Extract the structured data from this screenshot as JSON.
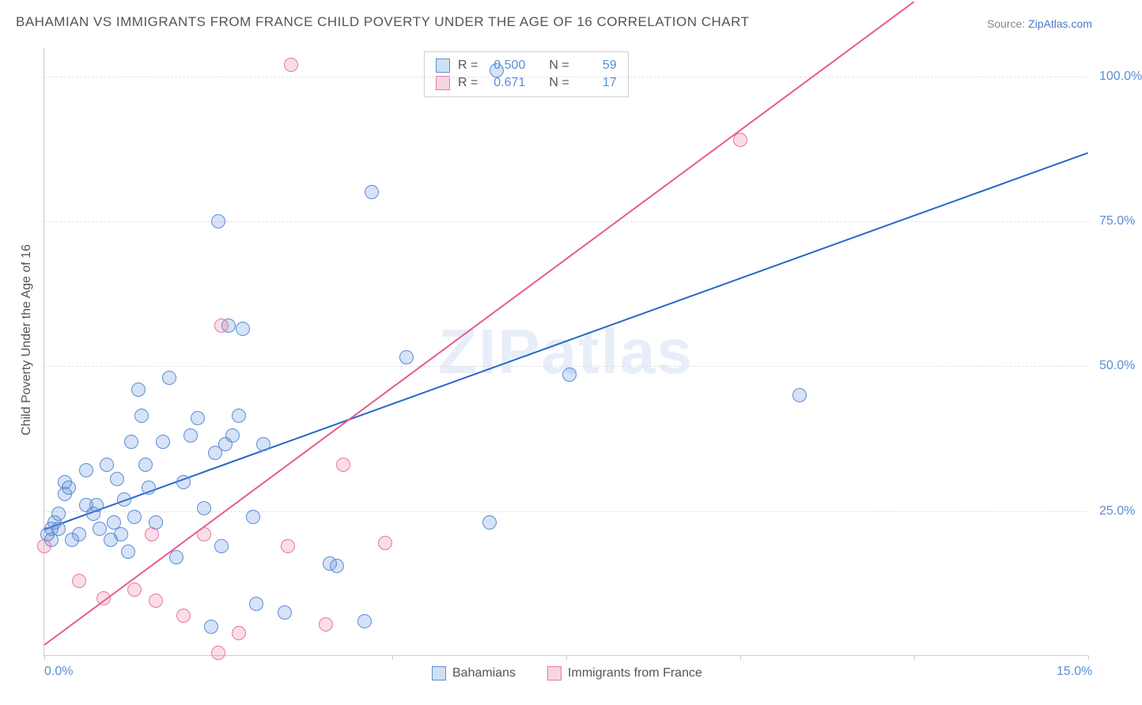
{
  "title": "BAHAMIAN VS IMMIGRANTS FROM FRANCE CHILD POVERTY UNDER THE AGE OF 16 CORRELATION CHART",
  "source_prefix": "Source: ",
  "source_link": "ZipAtlas.com",
  "y_axis_title": "Child Poverty Under the Age of 16",
  "watermark": "ZIPatlas",
  "chart": {
    "type": "scatter",
    "background_color": "#ffffff",
    "grid_color": "#e0e0e0",
    "x_range": [
      0,
      15
    ],
    "y_range": [
      0,
      105
    ],
    "x_ticks": [
      0,
      5,
      7.5,
      10,
      12.5,
      15
    ],
    "x_labels_shown": [
      {
        "v": 0,
        "t": "0.0%"
      },
      {
        "v": 15,
        "t": "15.0%"
      }
    ],
    "y_ticks": [
      25,
      50,
      75,
      100
    ],
    "y_tick_format": "%",
    "series": [
      {
        "name": "Bahamians",
        "color_fill": "rgba(91,141,214,0.25)",
        "color_stroke": "#5b8dd6",
        "swatch_fill": "#cfe0f5",
        "point_radius": 9,
        "R": "0.500",
        "N": "59",
        "trend": {
          "x1": 0,
          "y1": 22,
          "x2": 15,
          "y2": 87,
          "color": "#2968c8",
          "width": 2
        },
        "points": [
          [
            0.05,
            21
          ],
          [
            0.1,
            22
          ],
          [
            0.1,
            20
          ],
          [
            0.15,
            23
          ],
          [
            0.2,
            22
          ],
          [
            0.2,
            24.5
          ],
          [
            0.3,
            28
          ],
          [
            0.3,
            30
          ],
          [
            0.35,
            29
          ],
          [
            0.4,
            20
          ],
          [
            0.5,
            21
          ],
          [
            0.6,
            32
          ],
          [
            0.6,
            26
          ],
          [
            0.7,
            24.5
          ],
          [
            0.75,
            26
          ],
          [
            0.8,
            22
          ],
          [
            0.9,
            33
          ],
          [
            0.95,
            20
          ],
          [
            1.0,
            23
          ],
          [
            1.05,
            30.5
          ],
          [
            1.1,
            21
          ],
          [
            1.15,
            27
          ],
          [
            1.2,
            18
          ],
          [
            1.25,
            37
          ],
          [
            1.3,
            24
          ],
          [
            1.35,
            46
          ],
          [
            1.4,
            41.5
          ],
          [
            1.45,
            33
          ],
          [
            1.5,
            29
          ],
          [
            1.6,
            23
          ],
          [
            1.7,
            37
          ],
          [
            1.8,
            48
          ],
          [
            1.9,
            17
          ],
          [
            2.0,
            30
          ],
          [
            2.1,
            38
          ],
          [
            2.2,
            41
          ],
          [
            2.3,
            25.5
          ],
          [
            2.4,
            5
          ],
          [
            2.45,
            35
          ],
          [
            2.5,
            75
          ],
          [
            2.55,
            19
          ],
          [
            2.6,
            36.5
          ],
          [
            2.65,
            57
          ],
          [
            2.7,
            38
          ],
          [
            2.8,
            41.5
          ],
          [
            2.85,
            56.5
          ],
          [
            3.0,
            24
          ],
          [
            3.05,
            9
          ],
          [
            3.15,
            36.5
          ],
          [
            3.45,
            7.5
          ],
          [
            4.1,
            16
          ],
          [
            4.2,
            15.5
          ],
          [
            4.6,
            6
          ],
          [
            4.7,
            80
          ],
          [
            5.2,
            51.5
          ],
          [
            6.5,
            101
          ],
          [
            7.55,
            48.5
          ],
          [
            10.85,
            45
          ],
          [
            6.4,
            23
          ]
        ]
      },
      {
        "name": "Immigrants from France",
        "color_fill": "rgba(232,120,160,0.25)",
        "color_stroke": "#e878a0",
        "swatch_fill": "#f7d5e2",
        "point_radius": 9,
        "R": "0.671",
        "N": "17",
        "trend": {
          "x1": 0,
          "y1": 2,
          "x2": 12.5,
          "y2": 113,
          "color": "#e65a8f",
          "width": 2
        },
        "points": [
          [
            0.0,
            19
          ],
          [
            0.5,
            13
          ],
          [
            0.85,
            10
          ],
          [
            1.3,
            11.5
          ],
          [
            1.55,
            21
          ],
          [
            1.6,
            9.5
          ],
          [
            2.0,
            7
          ],
          [
            2.3,
            21
          ],
          [
            2.5,
            0.5
          ],
          [
            2.55,
            57
          ],
          [
            2.8,
            4
          ],
          [
            3.5,
            19
          ],
          [
            3.55,
            102
          ],
          [
            4.05,
            5.5
          ],
          [
            4.3,
            33
          ],
          [
            4.9,
            19.5
          ],
          [
            10.0,
            89
          ]
        ]
      }
    ]
  },
  "legend": {
    "r_label": "R =",
    "n_label": "N ="
  }
}
